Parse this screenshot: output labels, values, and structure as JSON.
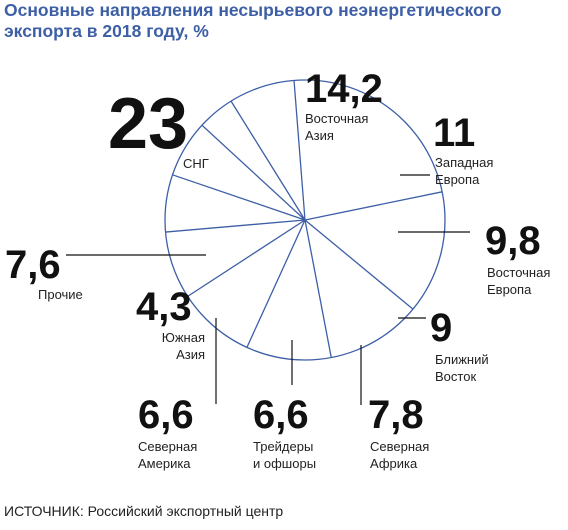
{
  "title": "Основные направления несырьевого неэнергетического экспорта в 2018 году, %",
  "source": "ИСТОЧНИК: Российский экспортный центр",
  "chart_data": {
    "type": "pie",
    "unit": "%",
    "outline_color": "#3d5fa6",
    "slices": [
      {
        "value": "23",
        "label": [
          "СНГ"
        ]
      },
      {
        "value": "14,2",
        "label": [
          "Восточная",
          "Азия"
        ]
      },
      {
        "value": "11",
        "label": [
          "Западная",
          "Европа"
        ]
      },
      {
        "value": "9,8",
        "label": [
          "Восточная",
          "Европа"
        ]
      },
      {
        "value": "9",
        "label": [
          "Ближний",
          "Восток"
        ]
      },
      {
        "value": "7,8",
        "label": [
          "Северная",
          "Африка"
        ]
      },
      {
        "value": "6,6",
        "label": [
          "Трейдеры",
          "и офшоры"
        ]
      },
      {
        "value": "6,6",
        "label": [
          "Северная",
          "Америка"
        ]
      },
      {
        "value": "4,3",
        "label": [
          "Южная",
          "Азия"
        ]
      },
      {
        "value": "7,6",
        "label": [
          "Прочие"
        ]
      }
    ]
  }
}
